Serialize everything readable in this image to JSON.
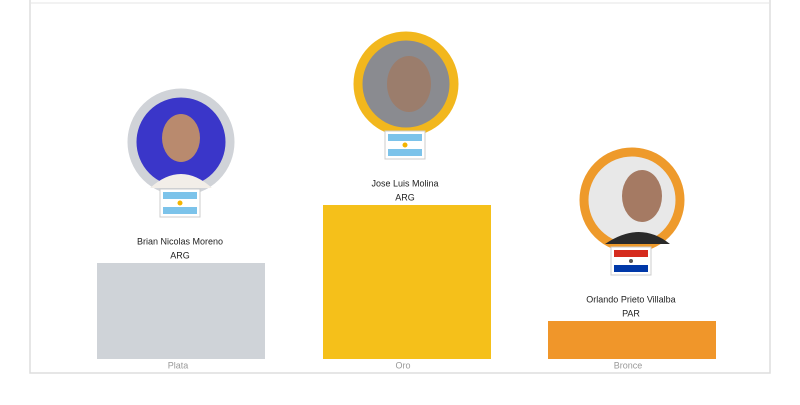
{
  "podium": [
    {
      "name": "Brian Nicolas Moreno",
      "country": "ARG",
      "medal": "Plata"
    },
    {
      "name": "Jose Luis Molina",
      "country": "ARG",
      "medal": "Oro"
    },
    {
      "name": "Orlando Prieto Villalba",
      "country": "PAR",
      "medal": "Bronce"
    }
  ]
}
